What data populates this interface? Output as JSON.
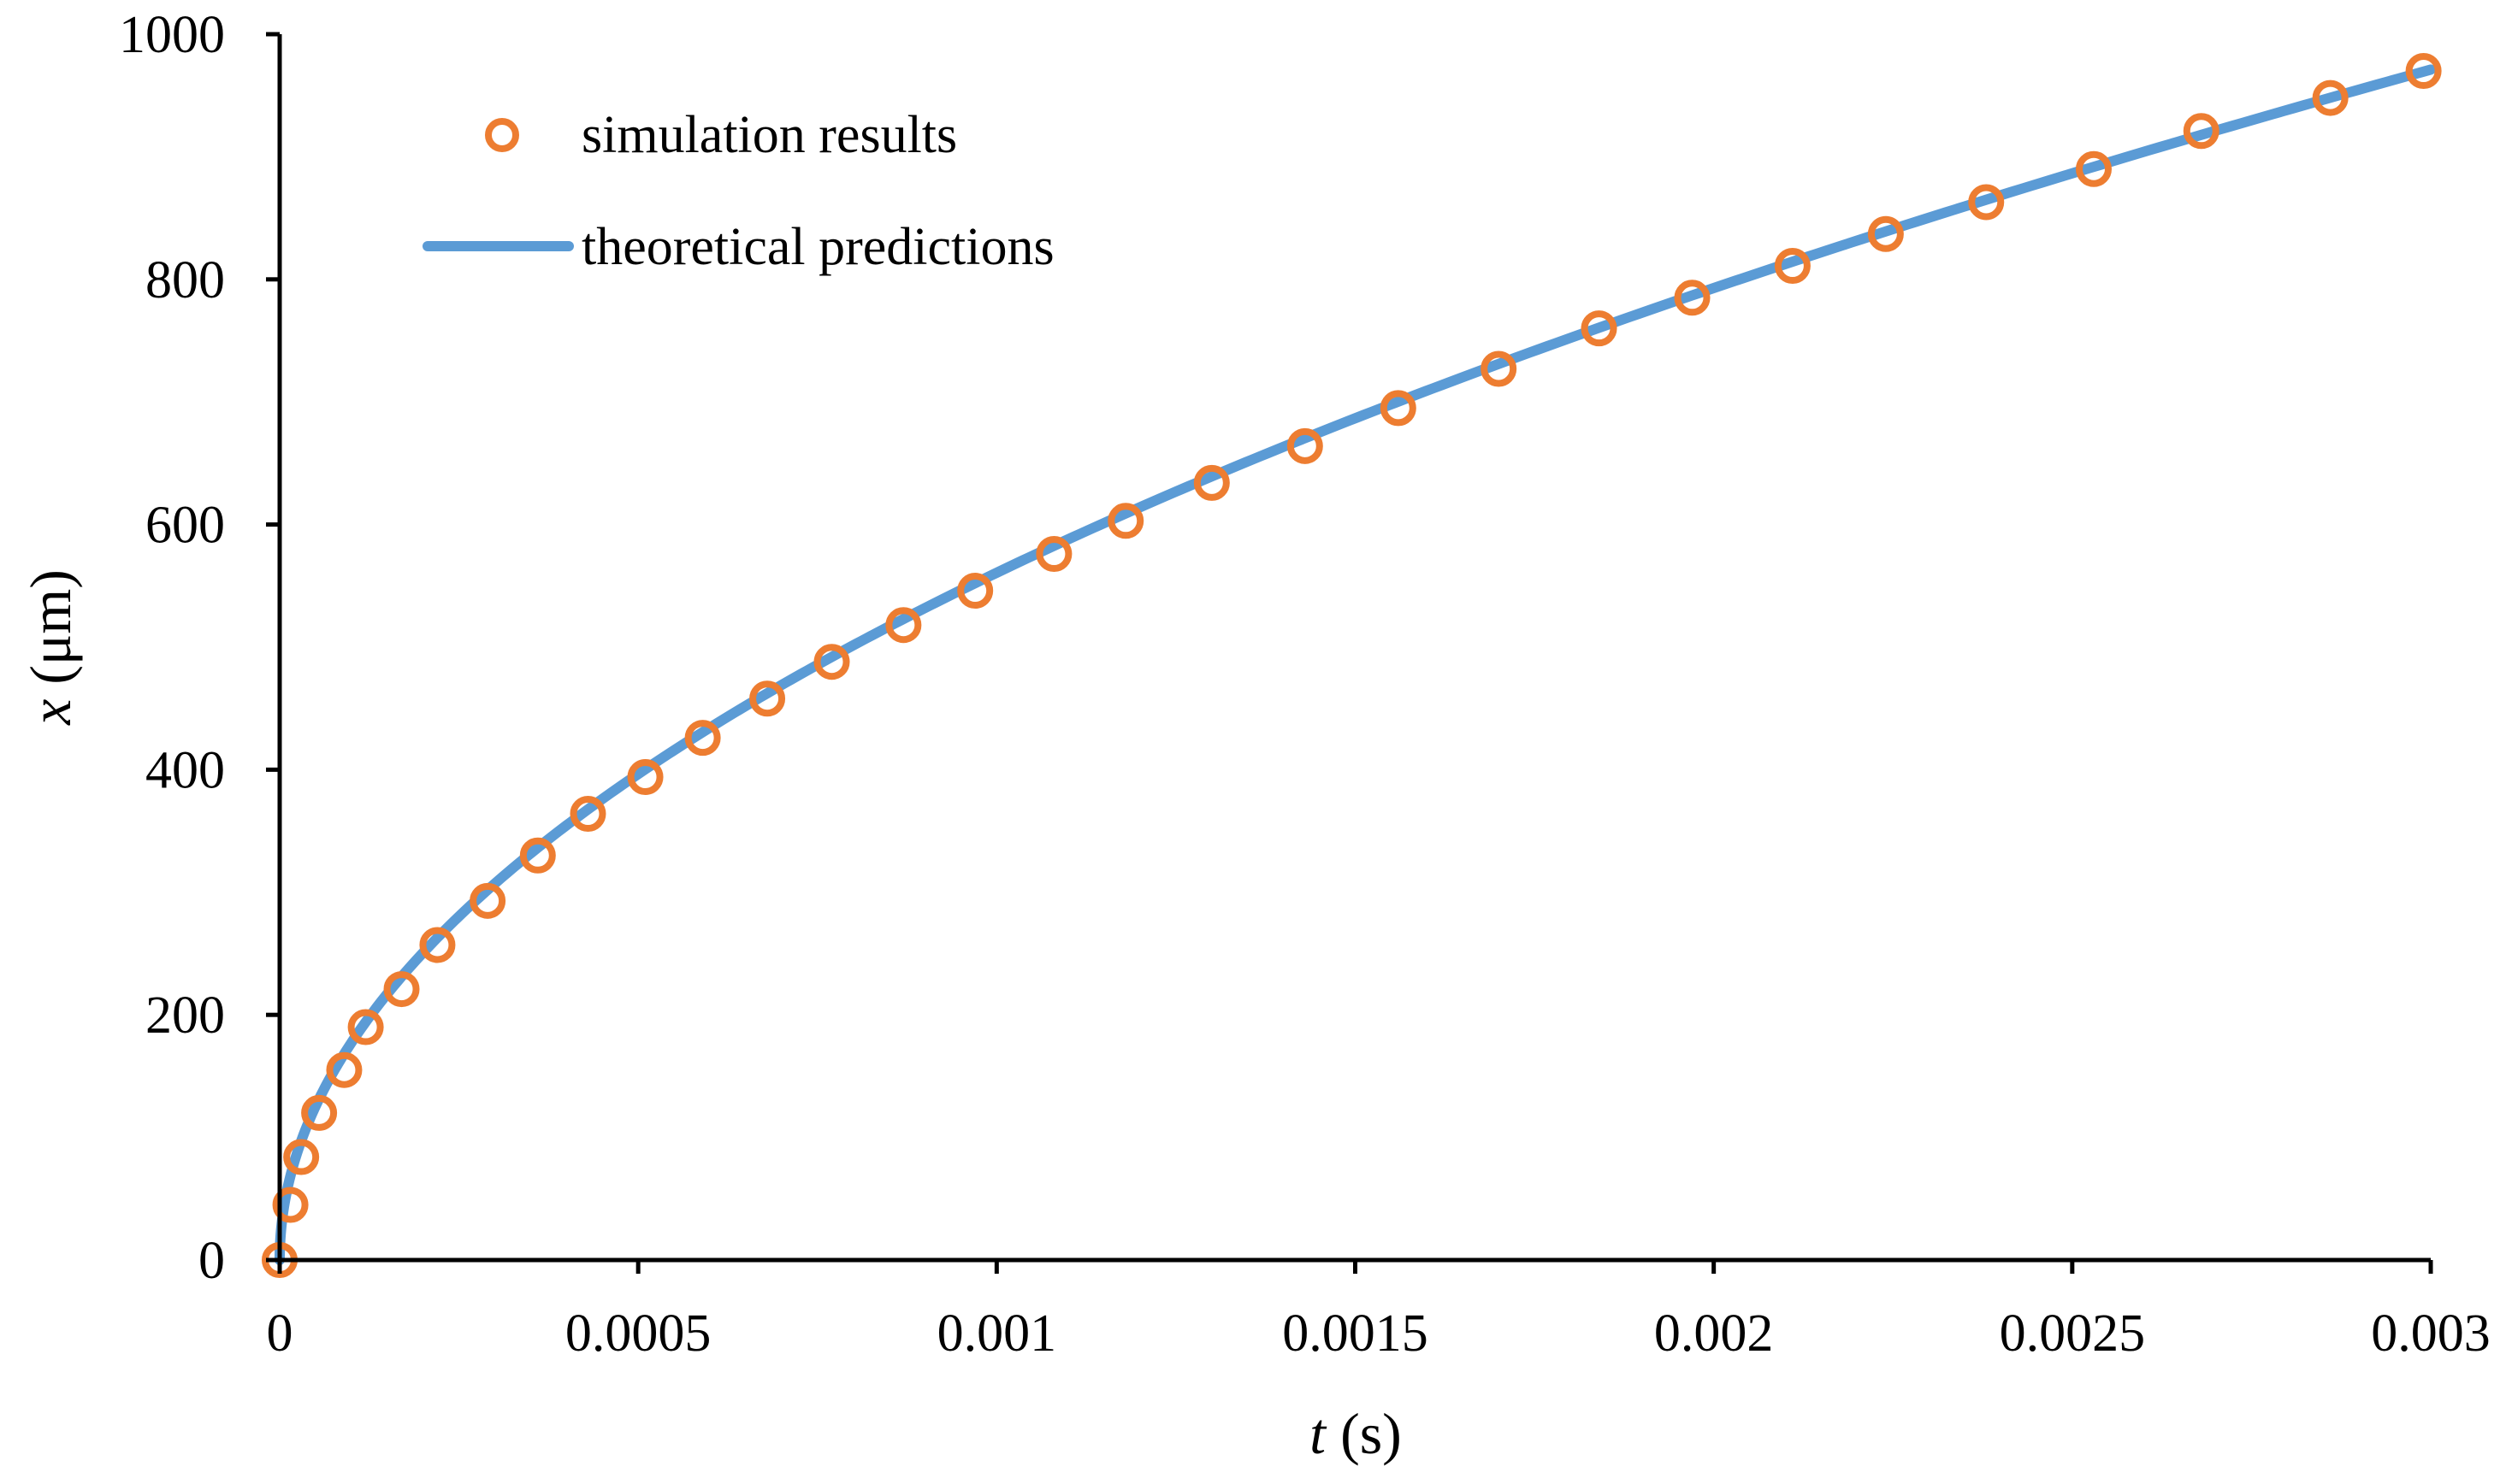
{
  "chart_data": {
    "type": "scatter",
    "title": "",
    "xlabel": {
      "var": "t",
      "unit": " (s)"
    },
    "ylabel": {
      "var": "x",
      "unit": " (μm)"
    },
    "xlim": [
      0,
      0.003
    ],
    "ylim": [
      0,
      1000
    ],
    "xticks": [
      0,
      0.0005,
      0.001,
      0.0015,
      0.002,
      0.0025,
      0.003
    ],
    "xtick_labels": [
      "0",
      "0.0005",
      "0.001",
      "0.0015",
      "0.002",
      "0.0025",
      "0.003"
    ],
    "yticks": [
      0,
      200,
      400,
      600,
      800,
      1000
    ],
    "ytick_labels": [
      "0",
      "200",
      "400",
      "600",
      "800",
      "1000"
    ],
    "legend_position": "top-left",
    "series": [
      {
        "name": "simulation results",
        "kind": "markers",
        "marker": "open-circle",
        "color": "#ED7D31",
        "points": [
          [
            0.0,
            0
          ],
          [
            1.5e-05,
            45
          ],
          [
            3e-05,
            84
          ],
          [
            5.5e-05,
            120
          ],
          [
            9e-05,
            155
          ],
          [
            0.00012,
            190
          ],
          [
            0.00017,
            221
          ],
          [
            0.00022,
            257
          ],
          [
            0.00029,
            293
          ],
          [
            0.00036,
            330
          ],
          [
            0.00043,
            364
          ],
          [
            0.00051,
            394
          ],
          [
            0.00059,
            426
          ],
          [
            0.00068,
            458
          ],
          [
            0.00077,
            488
          ],
          [
            0.00087,
            518
          ],
          [
            0.00097,
            546
          ],
          [
            0.00108,
            576
          ],
          [
            0.00118,
            603
          ],
          [
            0.0013,
            634
          ],
          [
            0.00143,
            664
          ],
          [
            0.00156,
            695
          ],
          [
            0.0017,
            727
          ],
          [
            0.00184,
            760
          ],
          [
            0.00197,
            785
          ],
          [
            0.00211,
            811
          ],
          [
            0.00224,
            837
          ],
          [
            0.00238,
            863
          ],
          [
            0.00253,
            890
          ],
          [
            0.00268,
            921
          ],
          [
            0.00286,
            948
          ],
          [
            0.00299,
            970
          ]
        ]
      },
      {
        "name": "theoretical predictions",
        "kind": "line",
        "color": "#5B9BD5",
        "model": "x = 17730 * sqrt(t)",
        "coefficient": 17730,
        "t_range": [
          0,
          0.003
        ]
      }
    ]
  }
}
